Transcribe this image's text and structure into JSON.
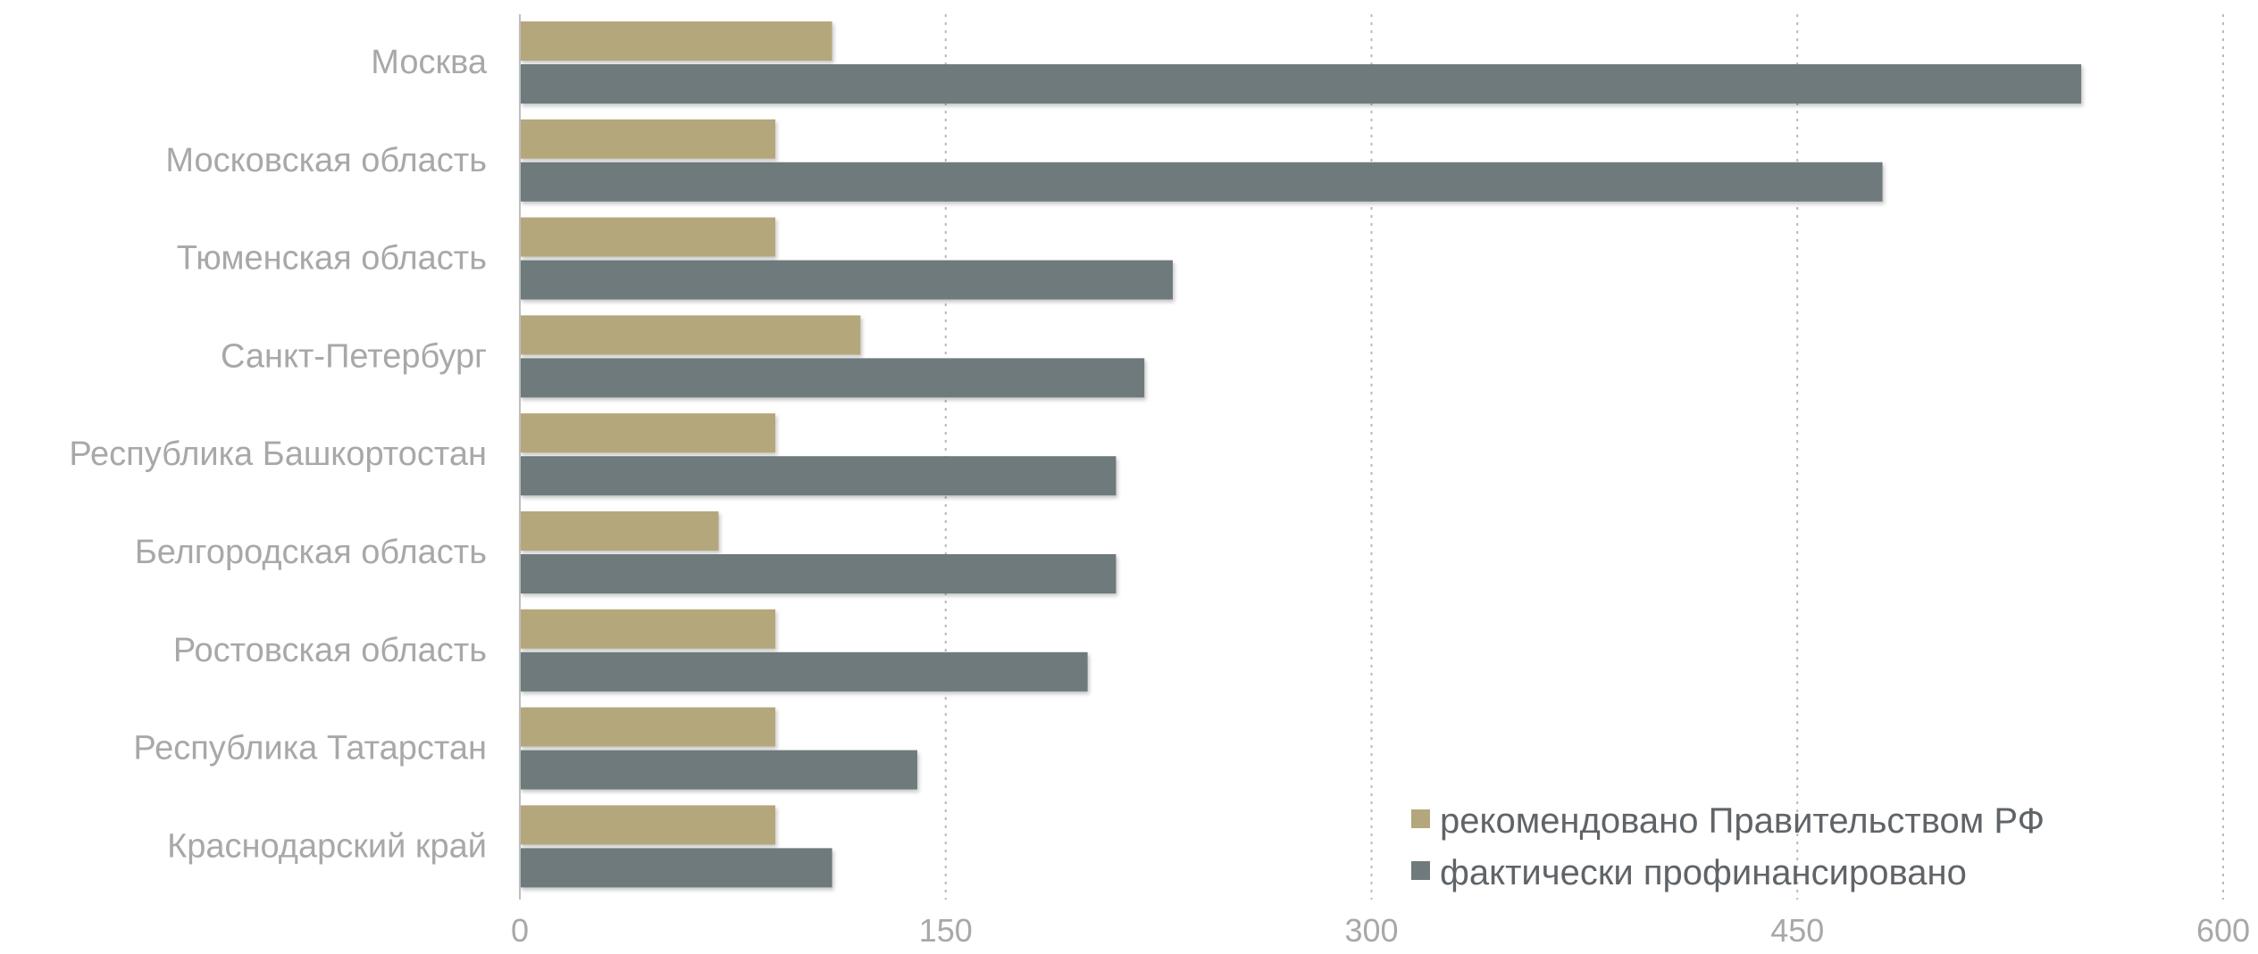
{
  "chart_data": {
    "type": "bar",
    "orientation": "horizontal",
    "categories": [
      "Москва",
      "Московская область",
      "Тюменская область",
      "Санкт-Петербург",
      "Республика Башкортостан",
      "Белгородская область",
      "Ростовская область",
      "Республика Татарстан",
      "Краснодарский край"
    ],
    "series": [
      {
        "name": "рекомендовано Правительством РФ",
        "color": "#b4a77c",
        "values": [
          110,
          90,
          90,
          120,
          90,
          70,
          90,
          90,
          90
        ]
      },
      {
        "name": "фактически профинансировано",
        "color": "#6e7a7b",
        "values": [
          550,
          480,
          230,
          220,
          210,
          210,
          200,
          140,
          110
        ]
      }
    ],
    "x_ticks": [
      "0",
      "150",
      "300",
      "450",
      "600"
    ],
    "xlim": [
      0,
      600
    ],
    "grid": "vertical dotted",
    "legend_position": "bottom-right",
    "title": "",
    "xlabel": "",
    "ylabel": ""
  }
}
